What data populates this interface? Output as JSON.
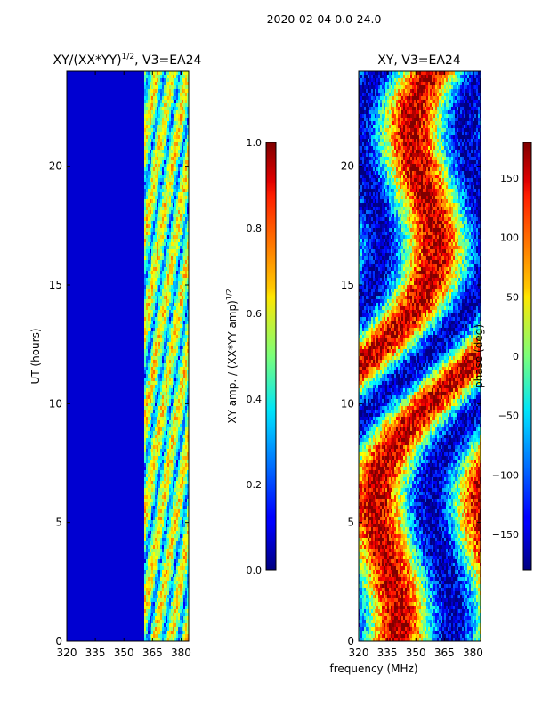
{
  "figure": {
    "suptitle": "2020-02-04 0.0-24.0",
    "shared_xlabel": "frequency (MHz)"
  },
  "chart_data": [
    {
      "type": "heatmap",
      "panel": "amplitude",
      "title": "XY/(XX*YY)^1/2, V3=EA24",
      "title_main": "XY/(XX*YY)",
      "title_sup": "1/2",
      "title_tail": ", V3=EA24",
      "xlabel": "frequency (MHz)",
      "ylabel": "UT (hours)",
      "xlim": [
        320,
        384
      ],
      "ylim": [
        0,
        24
      ],
      "xticks": [
        320,
        335,
        350,
        365,
        380
      ],
      "yticks": [
        0,
        5,
        10,
        15,
        20
      ],
      "data_coverage_hours": [
        0,
        24
      ],
      "colorbar": {
        "label": "XY amp. / (XX*YY amp)^1/2",
        "label_main": "XY amp. / (XX*YY amp)",
        "label_sup": "1/2",
        "vmin": 0.0,
        "vmax": 1.0,
        "ticks": [
          "0.0",
          "0.2",
          "0.4",
          "0.6",
          "0.8",
          "1.0"
        ],
        "colormap": "jet"
      }
    },
    {
      "type": "heatmap",
      "panel": "phase",
      "title": "XY, V3=EA24",
      "xlabel": "frequency (MHz)",
      "ylabel": "",
      "xlim": [
        320,
        384
      ],
      "ylim": [
        0,
        24
      ],
      "xticks": [
        320,
        335,
        350,
        365,
        380
      ],
      "yticks": [
        0,
        5,
        10,
        15,
        20
      ],
      "colorbar": {
        "label": "phase (deg)",
        "vmin": -180,
        "vmax": 180,
        "ticks": [
          "−150",
          "−100",
          "−50",
          "0",
          "50",
          "100",
          "150"
        ],
        "colormap": "jet"
      }
    }
  ]
}
